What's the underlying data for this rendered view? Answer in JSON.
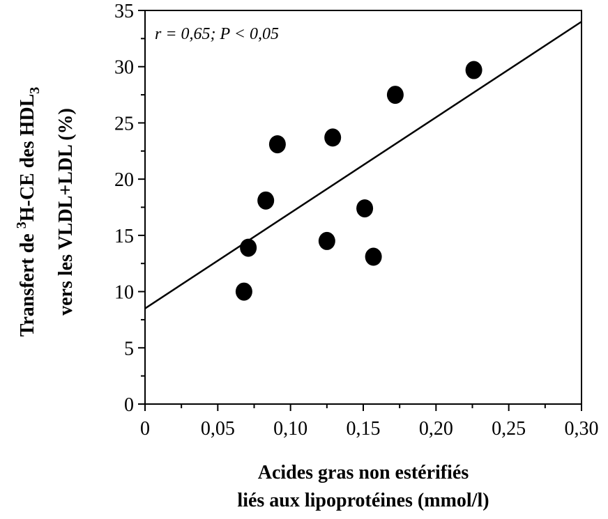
{
  "chart_data": {
    "type": "scatter",
    "title": "",
    "annotation": "r = 0,65; P < 0,05",
    "xlabel_line1": "Acides gras non estérifiés",
    "xlabel_line2": "liés aux lipoprotéines (mmol/l)",
    "ylabel_line1_prefix": "Transfert de ",
    "ylabel_line1_sup": "3",
    "ylabel_line1_mid": "H-CE des HDL",
    "ylabel_line1_sub": "3",
    "ylabel_line2": "vers les VLDL+LDL (%)",
    "xlim": [
      0,
      0.3
    ],
    "ylim": [
      0,
      35
    ],
    "x_ticks": [
      0,
      0.05,
      0.1,
      0.15,
      0.2,
      0.25,
      0.3
    ],
    "x_tick_labels": [
      "0",
      "0,05",
      "0,10",
      "0,15",
      "0,20",
      "0,25",
      "0,30"
    ],
    "y_ticks": [
      0,
      5,
      10,
      15,
      20,
      25,
      30,
      35
    ],
    "y_tick_labels": [
      "0",
      "5",
      "10",
      "15",
      "20",
      "25",
      "30",
      "35"
    ],
    "grid": false,
    "points": [
      {
        "x": 0.068,
        "y": 10.0
      },
      {
        "x": 0.071,
        "y": 13.9
      },
      {
        "x": 0.083,
        "y": 18.1
      },
      {
        "x": 0.091,
        "y": 23.1
      },
      {
        "x": 0.125,
        "y": 14.5
      },
      {
        "x": 0.129,
        "y": 23.7
      },
      {
        "x": 0.151,
        "y": 17.4
      },
      {
        "x": 0.157,
        "y": 13.1
      },
      {
        "x": 0.172,
        "y": 27.5
      },
      {
        "x": 0.226,
        "y": 29.7
      }
    ],
    "regression": {
      "x": [
        0,
        0.3
      ],
      "y": [
        8.5,
        34.0
      ]
    },
    "colors": {
      "marker": "#000000",
      "line": "#000000"
    }
  }
}
